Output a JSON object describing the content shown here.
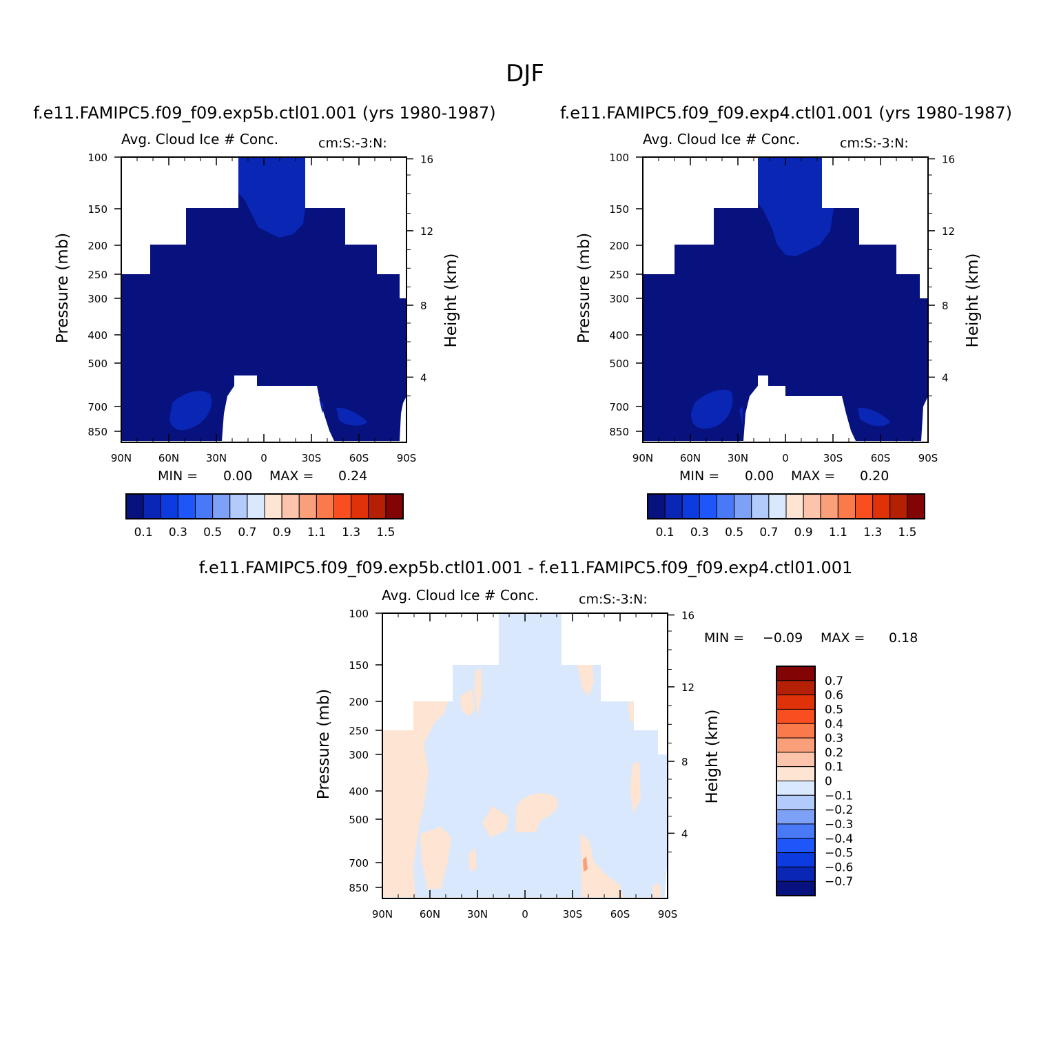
{
  "figure_title": "DJF",
  "colors": {
    "seq": [
      "#08127f",
      "#0a26b5",
      "#0c3be0",
      "#1f56fa",
      "#4a79f7",
      "#7da1f7",
      "#b3cbfa",
      "#d9e8fc",
      "#fde4d3",
      "#fcc5ab",
      "#f9a07a",
      "#fb7a4b",
      "#f84e20",
      "#e03208",
      "#b42004",
      "#820404"
    ],
    "diff": [
      "#08127f",
      "#0a26b5",
      "#0c3be0",
      "#1f56fa",
      "#4a79f7",
      "#7da1f7",
      "#b3cbfa",
      "#d9e8fc",
      "#fde4d3",
      "#fcc5ab",
      "#f9a07a",
      "#fb7a4b",
      "#f84e20",
      "#e03208",
      "#b42004",
      "#820404"
    ]
  },
  "panels": [
    {
      "case_title": "f.e11.FAMIPC5.f09_f09.exp5b.ctl01.001 (yrs 1980-1987)",
      "left_string": "Avg. Cloud Ice # Conc.",
      "right_string": "cm:S:-3:N:",
      "ylabel": "Pressure (mb)",
      "y2label": "Height (km)",
      "min_label": "MIN =",
      "min_value": "0.00",
      "max_label": "MAX =",
      "max_value": "0.24"
    },
    {
      "case_title": "f.e11.FAMIPC5.f09_f09.exp4.ctl01.001 (yrs 1980-1987)",
      "left_string": "Avg. Cloud Ice # Conc.",
      "right_string": "cm:S:-3:N:",
      "ylabel": "Pressure (mb)",
      "y2label": "Height (km)",
      "min_label": "MIN =",
      "min_value": "0.00",
      "max_label": "MAX =",
      "max_value": "0.20"
    },
    {
      "case_title": "f.e11.FAMIPC5.f09_f09.exp5b.ctl01.001 - f.e11.FAMIPC5.f09_f09.exp4.ctl01.001",
      "left_string": "Avg. Cloud Ice # Conc.",
      "right_string": "cm:S:-3:N:",
      "ylabel": "Pressure (mb)",
      "y2label": "Height (km)",
      "min_label": "MIN =",
      "min_value": "-0.09",
      "max_label": "MAX =",
      "max_value": "0.18"
    }
  ],
  "chart_data": [
    {
      "type": "heatmap",
      "title": "f.e11.FAMIPC5.f09_f09.exp5b.ctl01.001 (yrs 1980-1987)",
      "ylabel": "Pressure (mb)",
      "y2label": "Height (km)",
      "x_ticks": [
        "90N",
        "60N",
        "30N",
        "0",
        "30S",
        "60S",
        "90S"
      ],
      "y_ticks": [
        "100",
        "150",
        "200",
        "250",
        "300",
        "400",
        "500",
        "700",
        "850"
      ],
      "y2_ticks": [
        "16",
        "12",
        "8",
        "4"
      ],
      "colorbar_labels": [
        "0.1",
        "0.3",
        "0.5",
        "0.7",
        "0.9",
        "1.1",
        "1.3",
        "1.5"
      ],
      "min": 0.0,
      "max": 0.24
    },
    {
      "type": "heatmap",
      "title": "f.e11.FAMIPC5.f09_f09.exp4.ctl01.001 (yrs 1980-1987)",
      "ylabel": "Pressure (mb)",
      "y2label": "Height (km)",
      "x_ticks": [
        "90N",
        "60N",
        "30N",
        "0",
        "30S",
        "60S",
        "90S"
      ],
      "y_ticks": [
        "100",
        "150",
        "200",
        "250",
        "300",
        "400",
        "500",
        "700",
        "850"
      ],
      "y2_ticks": [
        "16",
        "12",
        "8",
        "4"
      ],
      "colorbar_labels": [
        "0.1",
        "0.3",
        "0.5",
        "0.7",
        "0.9",
        "1.1",
        "1.3",
        "1.5"
      ],
      "min": 0.0,
      "max": 0.2
    },
    {
      "type": "heatmap",
      "title": "f.e11.FAMIPC5.f09_f09.exp5b.ctl01.001 - f.e11.FAMIPC5.f09_f09.exp4.ctl01.001",
      "ylabel": "Pressure (mb)",
      "y2label": "Height (km)",
      "x_ticks": [
        "90N",
        "60N",
        "30N",
        "0",
        "30S",
        "60S",
        "90S"
      ],
      "y_ticks": [
        "100",
        "150",
        "200",
        "250",
        "300",
        "400",
        "500",
        "700",
        "850"
      ],
      "y2_ticks": [
        "16",
        "12",
        "8",
        "4"
      ],
      "colorbar_labels": [
        "0.7",
        "0.6",
        "0.5",
        "0.4",
        "0.3",
        "0.2",
        "0.1",
        "0",
        "-0.1",
        "-0.2",
        "-0.3",
        "-0.4",
        "-0.5",
        "-0.6",
        "-0.7"
      ],
      "min": -0.09,
      "max": 0.18
    }
  ]
}
